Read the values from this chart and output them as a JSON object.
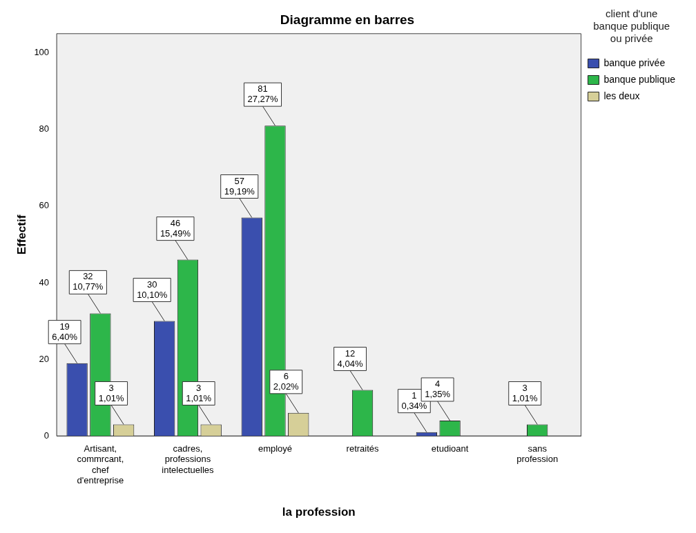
{
  "chart_data": {
    "type": "bar",
    "title": "Diagramme en barres",
    "xlabel": "la profession",
    "ylabel": "Effectif",
    "legend_title": "client d'une banque publique ou privée",
    "categories": [
      "Artisant, commrcant, chef d'entreprise",
      "cadres, professions intelectuelles",
      "employé",
      "retraités",
      "etudioant",
      "sans profession"
    ],
    "series": [
      {
        "name": "banque privée",
        "color": "#3a4fae",
        "values": [
          19,
          30,
          57,
          null,
          1,
          null
        ],
        "value_labels": [
          "19\n6,40%",
          "30\n10,10%",
          "57\n19,19%",
          null,
          "1\n0,34%",
          null
        ]
      },
      {
        "name": "banque publique",
        "color": "#2db64a",
        "values": [
          32,
          46,
          81,
          12,
          4,
          3
        ],
        "value_labels": [
          "32\n10,77%",
          "46\n15,49%",
          "81\n27,27%",
          "12\n4,04%",
          "4\n1,35%",
          "3\n1,01%"
        ]
      },
      {
        "name": "les deux",
        "color": "#d6cf98",
        "values": [
          3,
          3,
          6,
          null,
          null,
          null
        ],
        "value_labels": [
          "3\n1,01%",
          "3\n1,01%",
          "6\n2,02%",
          null,
          null,
          null
        ]
      }
    ],
    "ylim": [
      0,
      105
    ],
    "yticks": [
      0,
      20,
      40,
      60,
      80,
      100
    ],
    "grid": false,
    "legend": "top right"
  }
}
